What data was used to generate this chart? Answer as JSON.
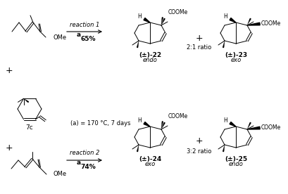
{
  "background_color": "#ffffff",
  "fig_width": 4.09,
  "fig_height": 2.76,
  "dpi": 100,
  "reaction1_label": "reaction 1",
  "reaction1_yield": "65%",
  "reaction2_label": "reaction 2",
  "reaction2_yield": "74%",
  "condition_label": "(a) = 170 °C, 7 days",
  "compound_22_label": "(±)-22",
  "compound_22_stereo": "endo",
  "compound_23_label": "(±)-23",
  "compound_23_stereo": "exo",
  "compound_24_label": "(±)-24",
  "compound_24_stereo": "exo",
  "compound_25_label": "(±)-25",
  "compound_25_stereo": "endo",
  "ratio1": "2:1 ratio",
  "ratio2": "3:2 ratio",
  "diene_label": "7c",
  "a_label": "a",
  "cooMe": "COOMe",
  "OMe": "OMe",
  "text_color": "#000000"
}
